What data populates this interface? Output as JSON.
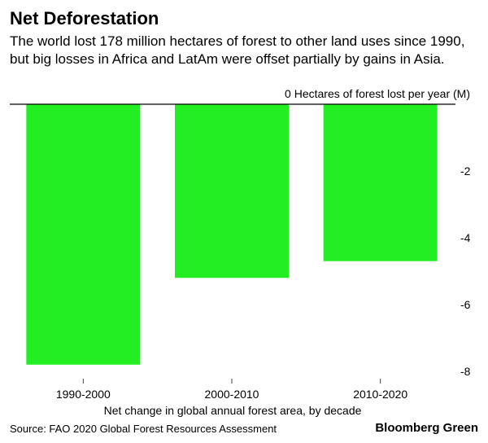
{
  "header": {
    "title": "Net Deforestation",
    "subtitle": "The world lost 178 million hectares of forest to other land uses since 1990, but big losses in Africa and LatAm were offset partially by gains in Asia."
  },
  "footer": {
    "source": "Source: FAO 2020 Global Forest Resources Assessment",
    "brand": "Bloomberg Green"
  },
  "colors": {
    "bar": "#22ee22",
    "axis": "#000000"
  },
  "chart_data": {
    "type": "bar",
    "title": "Net Deforestation",
    "categories": [
      "1990-2000",
      "2000-2010",
      "2010-2020"
    ],
    "values": [
      -7.8,
      -5.2,
      -4.7
    ],
    "ylim": [
      -8,
      0
    ],
    "yticks": [
      0,
      -2,
      -4,
      -6,
      -8
    ],
    "ytick_labels": [
      "0",
      "-2",
      "-4",
      "-6",
      "-8"
    ],
    "ylabel": "Hectares of forest lost per year (M)",
    "xlabel": "Net change in global annual forest area, by decade",
    "grid": false,
    "legend": "none"
  }
}
